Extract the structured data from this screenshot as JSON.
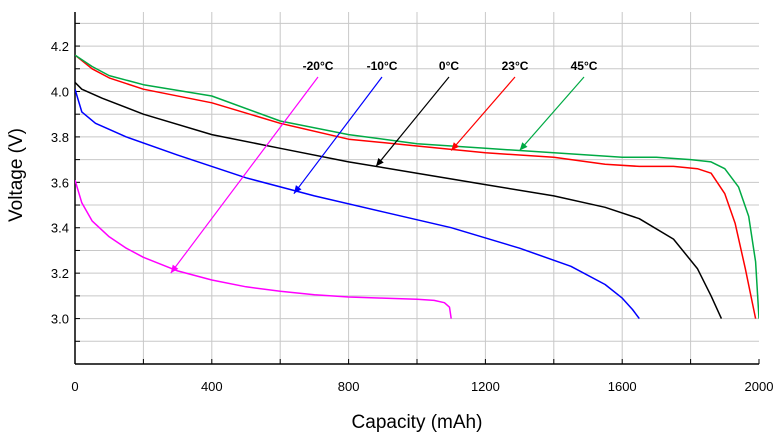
{
  "chart_data": {
    "type": "line",
    "title": "",
    "xlabel": "Capacity (mAh)",
    "ylabel": "Voltage (V)",
    "xlim": [
      0,
      2000
    ],
    "ylim": [
      2.8,
      4.35
    ],
    "xticks": [
      0,
      400,
      800,
      1200,
      1600,
      2000
    ],
    "yticks": [
      3.0,
      3.2,
      3.4,
      3.6,
      3.8,
      4.0,
      4.2
    ],
    "grid": true,
    "legend": "none",
    "series": [
      {
        "name": "-20°C",
        "color": "#ff00ff",
        "x": [
          0,
          20,
          50,
          100,
          150,
          200,
          300,
          400,
          500,
          600,
          700,
          800,
          900,
          1000,
          1050,
          1080,
          1095,
          1100
        ],
        "y": [
          3.61,
          3.51,
          3.43,
          3.36,
          3.31,
          3.27,
          3.21,
          3.17,
          3.14,
          3.12,
          3.105,
          3.095,
          3.09,
          3.085,
          3.08,
          3.07,
          3.05,
          3.0
        ]
      },
      {
        "name": "-10°C",
        "color": "#0000ff",
        "x": [
          0,
          20,
          60,
          150,
          300,
          500,
          700,
          900,
          1100,
          1300,
          1450,
          1550,
          1600,
          1630,
          1650
        ],
        "y": [
          4.01,
          3.91,
          3.86,
          3.8,
          3.72,
          3.62,
          3.54,
          3.47,
          3.4,
          3.31,
          3.23,
          3.15,
          3.09,
          3.04,
          3.0
        ]
      },
      {
        "name": "0°C",
        "color": "#000000",
        "x": [
          0,
          20,
          80,
          200,
          400,
          600,
          800,
          1000,
          1200,
          1400,
          1550,
          1650,
          1750,
          1820,
          1860,
          1890
        ],
        "y": [
          4.04,
          4.01,
          3.97,
          3.9,
          3.81,
          3.75,
          3.69,
          3.64,
          3.59,
          3.54,
          3.49,
          3.44,
          3.35,
          3.22,
          3.1,
          3.0
        ]
      },
      {
        "name": "23°C",
        "color": "#ff0000",
        "x": [
          0,
          50,
          100,
          200,
          400,
          600,
          800,
          1000,
          1200,
          1400,
          1550,
          1650,
          1750,
          1820,
          1860,
          1900,
          1930,
          1960,
          1990
        ],
        "y": [
          4.16,
          4.1,
          4.06,
          4.01,
          3.95,
          3.86,
          3.79,
          3.76,
          3.73,
          3.71,
          3.68,
          3.67,
          3.67,
          3.66,
          3.64,
          3.55,
          3.42,
          3.22,
          3.0
        ]
      },
      {
        "name": "45°C",
        "color": "#00aa44",
        "x": [
          0,
          50,
          100,
          200,
          400,
          600,
          800,
          1000,
          1200,
          1400,
          1600,
          1700,
          1800,
          1860,
          1900,
          1940,
          1970,
          1990,
          2000
        ],
        "y": [
          4.16,
          4.11,
          4.07,
          4.03,
          3.98,
          3.87,
          3.81,
          3.77,
          3.75,
          3.73,
          3.71,
          3.71,
          3.7,
          3.69,
          3.66,
          3.58,
          3.45,
          3.25,
          3.0
        ]
      }
    ],
    "annotations": [
      {
        "label": "-20°C",
        "series": "-20°C",
        "arrow_to": [
          280,
          3.2
        ]
      },
      {
        "label": "-10°C",
        "series": "-10°C",
        "arrow_to": [
          640,
          3.55
        ]
      },
      {
        "label": "0°C",
        "series": "0°C",
        "arrow_to": [
          880,
          3.67
        ]
      },
      {
        "label": "23°C",
        "series": "23°C",
        "arrow_to": [
          1100,
          3.74
        ]
      },
      {
        "label": "45°C",
        "series": "45°C",
        "arrow_to": [
          1300,
          3.74
        ]
      }
    ]
  }
}
